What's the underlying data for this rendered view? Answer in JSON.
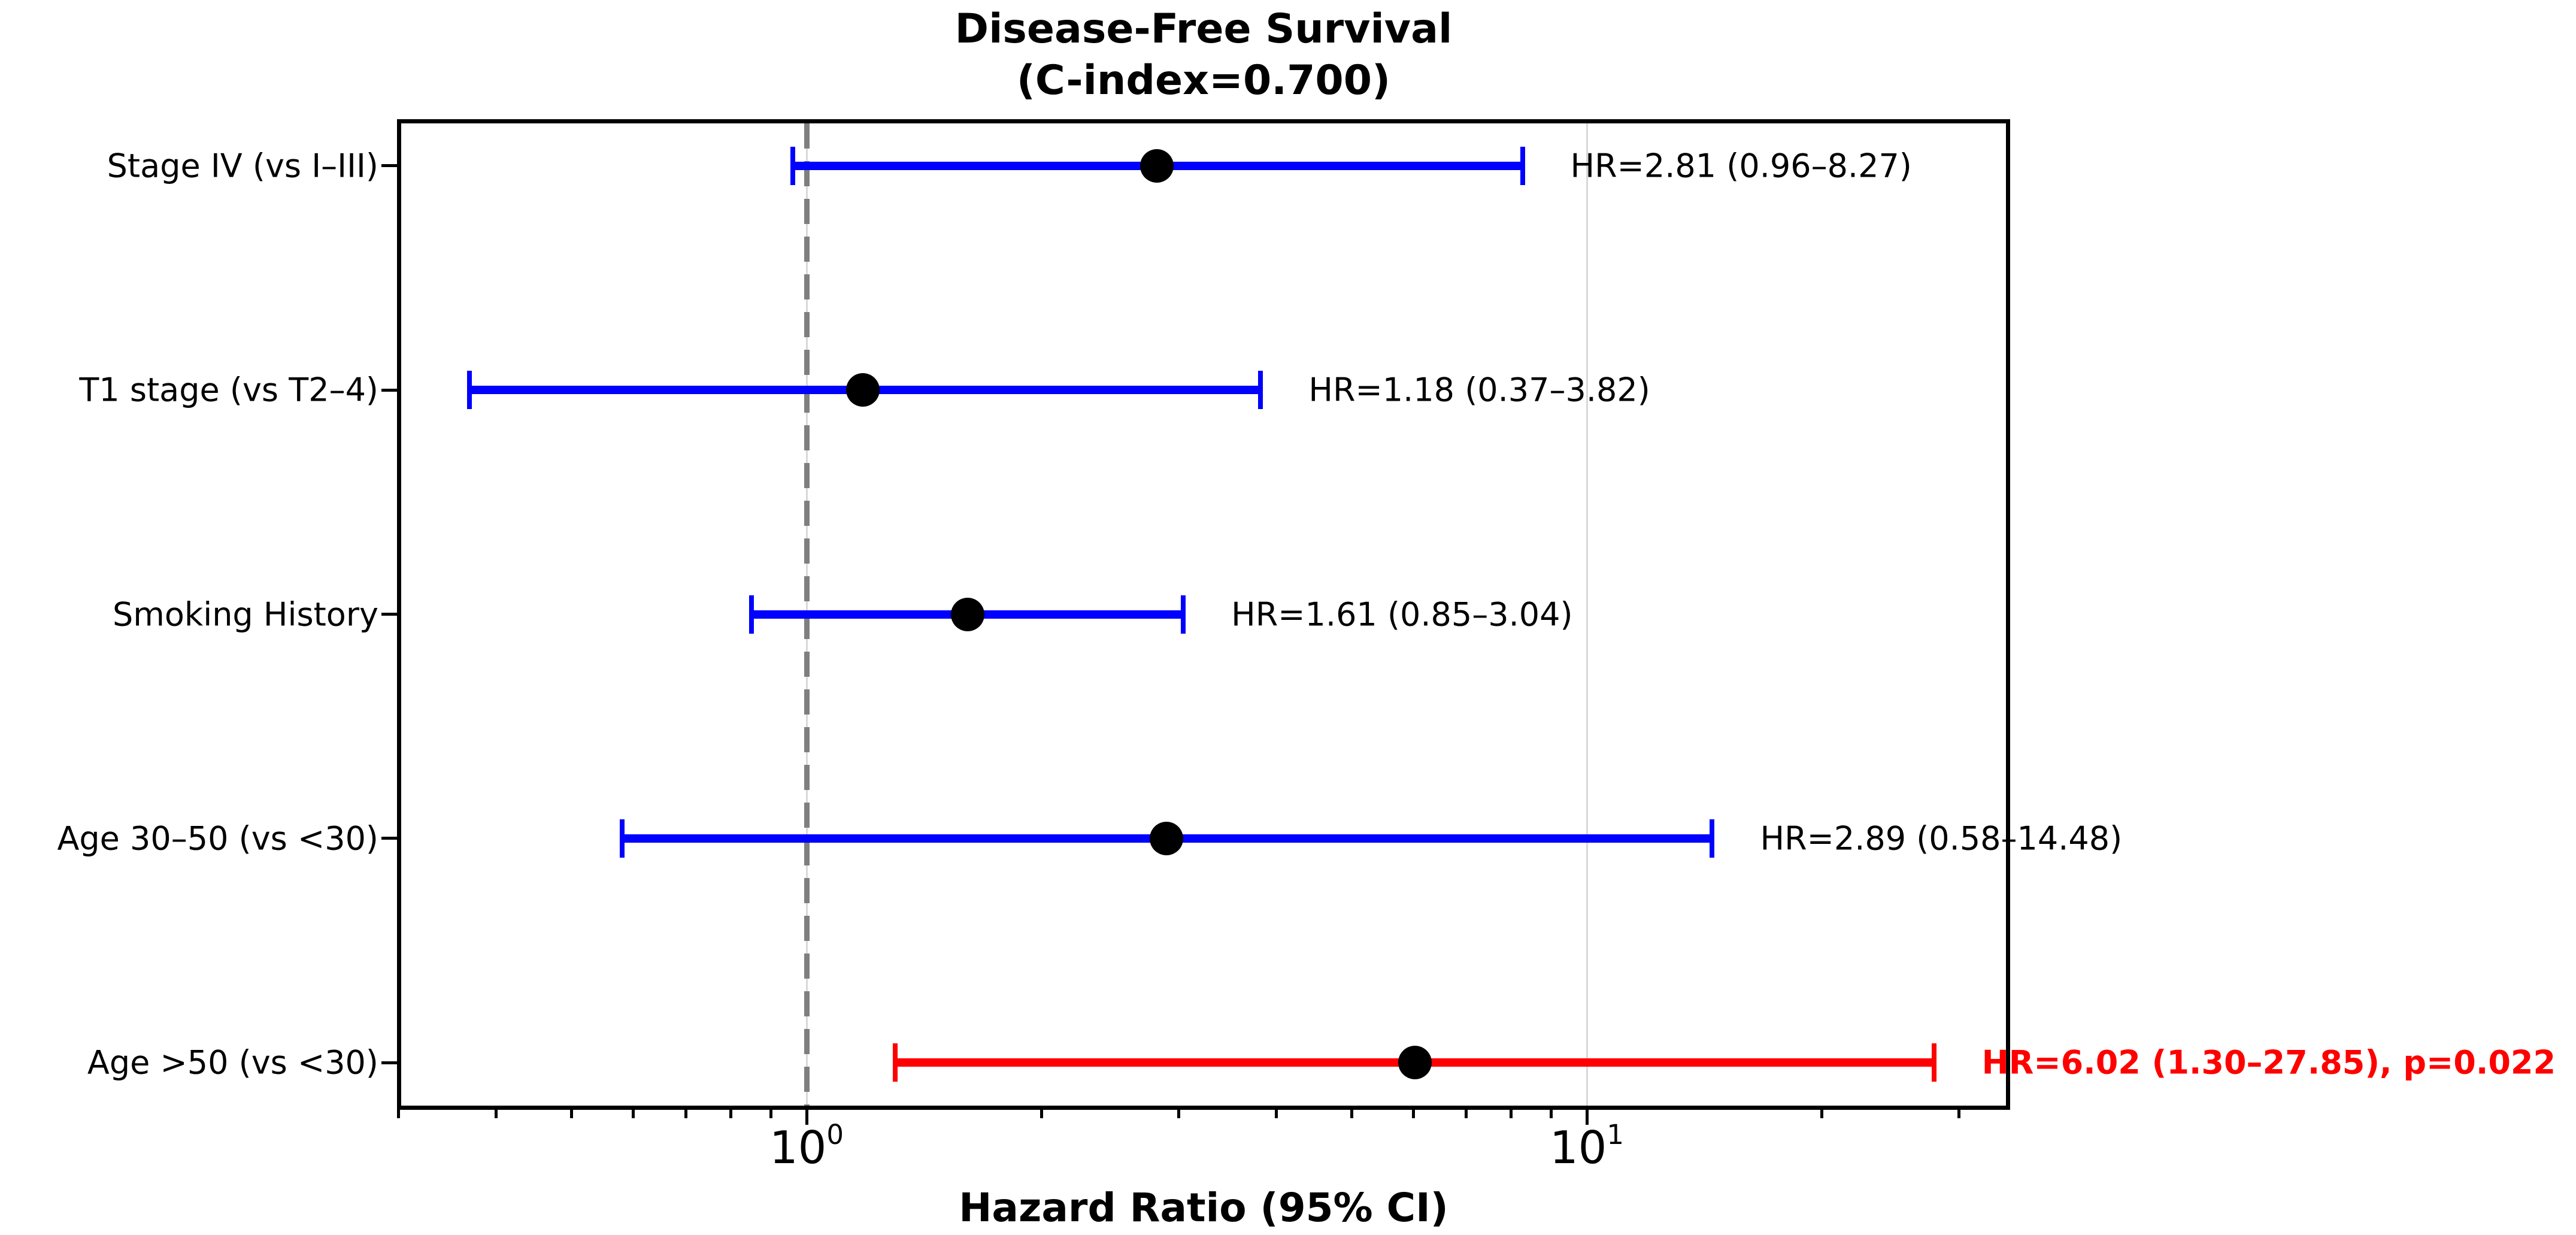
{
  "chart_data": {
    "type": "forest",
    "title": "Disease-Free Survival",
    "subtitle": "(C-index=0.700)",
    "xlabel": "Hazard Ratio (95% CI)",
    "x_scale": "log",
    "xlim": [
      0.3,
      33.5
    ],
    "reference_line": 1.0,
    "grid": "major-x, light gray",
    "x_major_ticks": [
      {
        "value": 1,
        "mantissa": "10",
        "exponent": "0"
      },
      {
        "value": 10,
        "mantissa": "10",
        "exponent": "1"
      }
    ],
    "x_minor_ticks": [
      0.3,
      0.4,
      0.5,
      0.6,
      0.7,
      0.8,
      0.9,
      2,
      3,
      4,
      5,
      6,
      7,
      8,
      9,
      20,
      30
    ],
    "rows": [
      {
        "label": "Stage IV (vs I–III)",
        "hr": 2.81,
        "ci_low": 0.96,
        "ci_high": 8.27,
        "annotation": "HR=2.81 (0.96–8.27)",
        "significant": false,
        "color": "#0000ff"
      },
      {
        "label": "T1 stage (vs T2–4)",
        "hr": 1.18,
        "ci_low": 0.37,
        "ci_high": 3.82,
        "annotation": "HR=1.18 (0.37–3.82)",
        "significant": false,
        "color": "#0000ff"
      },
      {
        "label": "Smoking History",
        "hr": 1.61,
        "ci_low": 0.85,
        "ci_high": 3.04,
        "annotation": "HR=1.61 (0.85–3.04)",
        "significant": false,
        "color": "#0000ff"
      },
      {
        "label": "Age 30–50 (vs <30)",
        "hr": 2.89,
        "ci_low": 0.58,
        "ci_high": 14.48,
        "annotation": "HR=2.89 (0.58–14.48)",
        "significant": false,
        "color": "#0000ff"
      },
      {
        "label": "Age >50 (vs <30)",
        "hr": 6.02,
        "ci_low": 1.3,
        "ci_high": 27.85,
        "annotation": "HR=6.02 (1.30–27.85), p=0.022",
        "significant": true,
        "color": "#ff0000",
        "p_value": "0.022"
      }
    ],
    "colors": {
      "nonsignificant": "#0000ff",
      "significant": "#ff0000",
      "marker": "#000000",
      "reference_line": "#7f7f7f",
      "gridline": "#d8d8d8"
    },
    "legend": "none"
  }
}
